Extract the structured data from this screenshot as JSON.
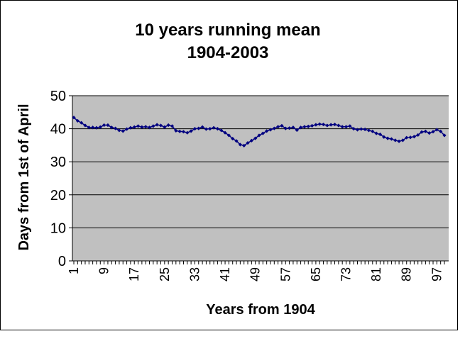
{
  "chart_data": {
    "type": "line",
    "title_line1": "10 years running mean",
    "title_line2": "1904-2003",
    "xlabel": "Years from 1904",
    "ylabel": "Days from 1st of April",
    "ylim": [
      0,
      50
    ],
    "yticks": [
      0,
      10,
      20,
      30,
      40,
      50
    ],
    "xlim": [
      1,
      99
    ],
    "xticks": [
      1,
      9,
      17,
      25,
      33,
      41,
      49,
      57,
      65,
      73,
      81,
      89,
      97
    ],
    "grid": true,
    "legend": "none",
    "colors": {
      "plot_area": "#c0c0c0",
      "series": "#000080",
      "gridline": "#000000",
      "frame": "#000000"
    },
    "series": [
      {
        "x": [
          1,
          2,
          3,
          4,
          5,
          6,
          7,
          8,
          9,
          10,
          11,
          12,
          13,
          14,
          15,
          16,
          17,
          18,
          19,
          20,
          21,
          22,
          23,
          24,
          25,
          26,
          27,
          28,
          29,
          30,
          31,
          32,
          33,
          34,
          35,
          36,
          37,
          38,
          39,
          40,
          41,
          42,
          43,
          44,
          45,
          46,
          47,
          48,
          49,
          50,
          51,
          52,
          53,
          54,
          55,
          56,
          57,
          58,
          59,
          60,
          61,
          62,
          63,
          64,
          65,
          66,
          67,
          68,
          69,
          70,
          71,
          72,
          73,
          74,
          75,
          76,
          77,
          78,
          79,
          80,
          81,
          82,
          83,
          84,
          85,
          86,
          87,
          88,
          89,
          90,
          91,
          92,
          93,
          94,
          95,
          96,
          97,
          98,
          99
        ],
        "values": [
          43.4,
          42.4,
          41.8,
          41.0,
          40.4,
          40.4,
          40.3,
          40.5,
          41.1,
          41.1,
          40.4,
          40.1,
          39.5,
          39.3,
          39.9,
          40.3,
          40.5,
          40.8,
          40.5,
          40.6,
          40.4,
          40.8,
          41.2,
          41.0,
          40.5,
          41.1,
          40.8,
          39.4,
          39.2,
          39.1,
          38.8,
          39.3,
          40.0,
          40.1,
          40.5,
          39.9,
          40.0,
          40.3,
          40.0,
          39.5,
          38.8,
          38.0,
          37.0,
          36.3,
          35.2,
          34.9,
          35.7,
          36.4,
          37.1,
          38.0,
          38.6,
          39.3,
          39.7,
          40.1,
          40.6,
          40.9,
          40.1,
          40.2,
          40.4,
          39.6,
          40.4,
          40.6,
          40.7,
          40.9,
          41.2,
          41.4,
          41.3,
          41.0,
          41.2,
          41.3,
          41.0,
          40.6,
          40.6,
          40.8,
          40.0,
          39.7,
          39.9,
          39.8,
          39.5,
          39.2,
          38.6,
          38.3,
          37.5,
          37.1,
          36.9,
          36.5,
          36.2,
          36.5,
          37.3,
          37.4,
          37.6,
          38.1,
          39.0,
          39.2,
          38.7,
          39.1,
          39.7,
          39.2,
          38.0
        ]
      }
    ]
  }
}
